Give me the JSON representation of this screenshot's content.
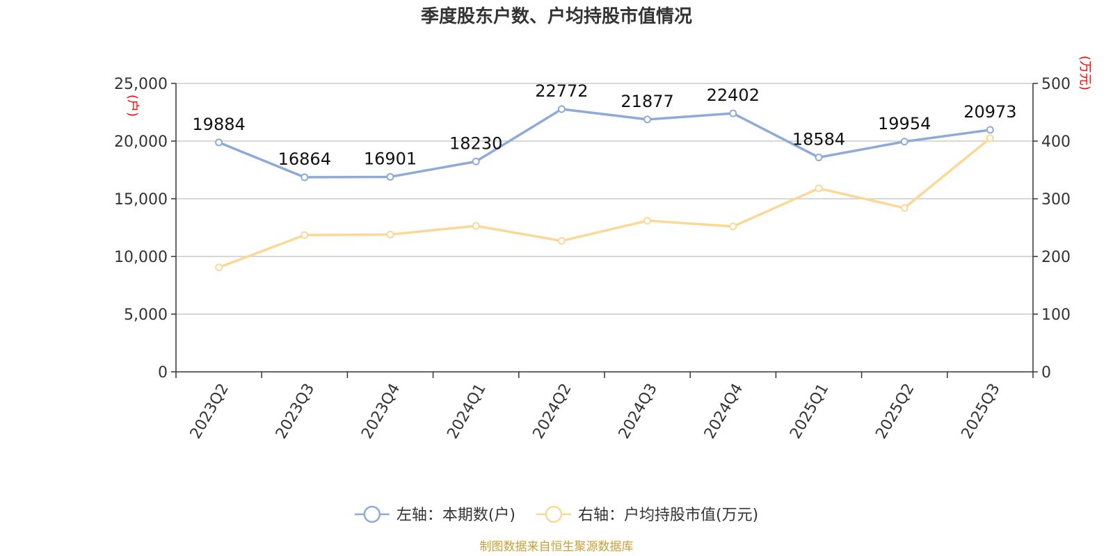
{
  "title": "季度股东户数、户均持股市值情况",
  "source": "制图数据来自恒生聚源数据库",
  "chart_data": {
    "type": "line",
    "title": "季度股东户数、户均持股市值情况",
    "categories": [
      "2023Q2",
      "2023Q3",
      "2023Q4",
      "2024Q1",
      "2024Q2",
      "2024Q3",
      "2024Q4",
      "2025Q1",
      "2025Q2",
      "2025Q3"
    ],
    "left_axis": {
      "unit": "(户)",
      "range": [
        0,
        25000
      ],
      "ticks": [
        0,
        5000,
        10000,
        15000,
        20000,
        25000
      ],
      "tick_labels": [
        "0",
        "5,000",
        "10,000",
        "15,000",
        "20,000",
        "25,000"
      ]
    },
    "right_axis": {
      "unit": "(万元)",
      "range": [
        0,
        500
      ],
      "ticks": [
        0,
        100,
        200,
        300,
        400,
        500
      ],
      "tick_labels": [
        "0",
        "100",
        "200",
        "300",
        "400",
        "500"
      ]
    },
    "grid": true,
    "legend_position": "bottom",
    "series": [
      {
        "name": "左轴：本期数(户)",
        "axis": "left",
        "color": "#8eaad8",
        "values": [
          19884,
          16864,
          16901,
          18230,
          22772,
          21877,
          22402,
          18584,
          19954,
          20973
        ],
        "labels": [
          "19884",
          "16864",
          "16901",
          "18230",
          "22772",
          "21877",
          "22402",
          "18584",
          "19954",
          "20973"
        ]
      },
      {
        "name": "右轴：户均持股市值(万元)",
        "axis": "right",
        "color": "#fcd897",
        "values": [
          181,
          237,
          238,
          253,
          227,
          262,
          252,
          318,
          284,
          405
        ]
      }
    ]
  }
}
